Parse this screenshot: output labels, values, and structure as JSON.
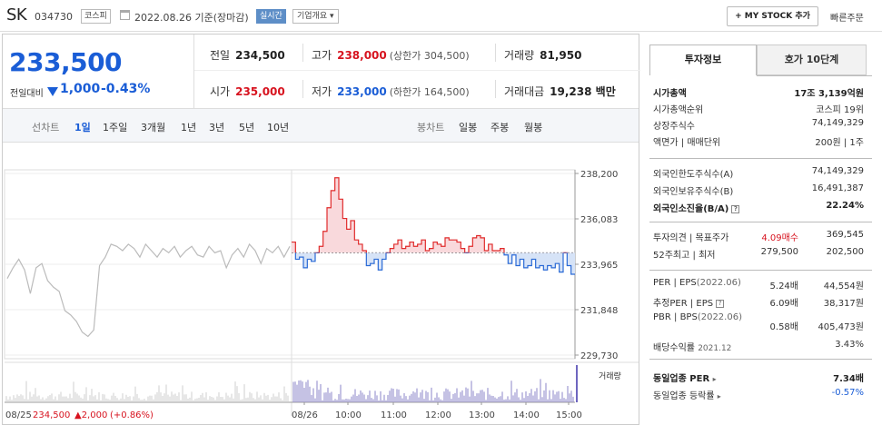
{
  "header": {
    "name": "SK",
    "code": "034730",
    "market": "코스피",
    "date_info": "2022.08.26 기준(장마감)",
    "realtime": "실시간",
    "overview": "기업개요 ▾",
    "my_stock": "+ MY STOCK 추가",
    "quick_order": "빠른주문"
  },
  "price": {
    "current": "233,500",
    "change_label": "전일대비",
    "change": "1,000",
    "change_pct": "-0.43%"
  },
  "summary": {
    "prev_label": "전일",
    "prev": "234,500",
    "high_label": "고가",
    "high": "238,000",
    "upper_limit": "(상한가 304,500)",
    "volume_label": "거래량",
    "volume": "81,950",
    "open_label": "시가",
    "open": "235,000",
    "low_label": "저가",
    "low": "233,000",
    "lower_limit": "(하한가 164,500)",
    "amount_label": "거래대금",
    "amount": "19,238 백만"
  },
  "periods": {
    "line_label": "선차트",
    "line": [
      "1일",
      "1주일",
      "3개월",
      "1년",
      "3년",
      "5년",
      "10년"
    ],
    "candle_label": "봉차트",
    "candle": [
      "일봉",
      "주봉",
      "월봉"
    ]
  },
  "chart_data": {
    "type": "line",
    "title": "",
    "xlabel": "",
    "ylabel": "",
    "ylim": [
      229730,
      238200
    ],
    "y_ticks": [
      "238,200",
      "236,083",
      "233,965",
      "231,848",
      "229,730"
    ],
    "x_ticks": [
      "08/26",
      "10:00",
      "11:00",
      "12:00",
      "13:00",
      "14:00",
      "15:00"
    ],
    "baseline": 234500,
    "prev_day": {
      "date": "08/25",
      "close": "234,500",
      "change": "▲2,000",
      "change_pct": "(+0.86%)"
    },
    "series": [
      {
        "name": "08/25",
        "values": [
          233300,
          233800,
          234200,
          233700,
          232600,
          233800,
          234000,
          233200,
          232900,
          232700,
          231800,
          231600,
          231300,
          230800,
          230600,
          230900,
          233900,
          234300,
          234900,
          234800,
          234600,
          234900,
          234700,
          234300,
          234900,
          234600,
          234300,
          234700,
          234500,
          234800,
          234300,
          234600,
          234800,
          234400,
          234300,
          234800,
          234500,
          234600,
          233800,
          234400,
          234700,
          234300,
          234900,
          234600,
          234000,
          234700,
          234500,
          234800,
          234300,
          234800
        ]
      },
      {
        "name": "08/26",
        "values": [
          235000,
          234200,
          234300,
          233800,
          234200,
          234100,
          234500,
          234800,
          235500,
          236600,
          237400,
          238000,
          237000,
          236100,
          235600,
          236000,
          235100,
          234900,
          234600,
          233900,
          234000,
          234200,
          233700,
          234200,
          234500,
          234700,
          234900,
          235100,
          234700,
          234800,
          235000,
          234800,
          234900,
          235100,
          234600,
          234700,
          235000,
          234900,
          234800,
          235200,
          235100,
          235100,
          235000,
          234700,
          234500,
          234800,
          235200,
          235300,
          235200,
          234600,
          234900,
          234600,
          234600,
          234700,
          234400,
          234000,
          234400,
          233900,
          234200,
          233800,
          233900,
          234200,
          233800,
          233900,
          233700,
          233900,
          233800,
          234000,
          233600,
          234500,
          233900,
          233500,
          233500
        ]
      }
    ],
    "volume_label": "거래량"
  },
  "invest": {
    "tab_active": "투자정보",
    "tab_other": "호가 10단계",
    "market_cap_label": "시가총액",
    "market_cap": "17조 3,139억원",
    "cap_rank_label": "시가총액순위",
    "cap_rank": "코스피 19위",
    "shares_label": "상장주식수",
    "shares": "74,149,329",
    "par_label": "액면가 | 매매단위",
    "par": "200원 | 1주",
    "foreign_limit_label": "외국인한도주식수(A)",
    "foreign_limit": "74,149,329",
    "foreign_hold_label": "외국인보유주식수(B)",
    "foreign_hold": "16,491,387",
    "foreign_ratio_label": "외국인소진율(B/A)",
    "foreign_ratio": "22.24%",
    "opinion_label": "투자의견 | 목표주가",
    "opinion": "4.09매수",
    "target": "369,545",
    "w52_label": "52주최고 | 최저",
    "w52_high": "279,500",
    "w52_low": "202,500",
    "per_label": "PER | EPS",
    "per_period": "(2022.06)",
    "per": "5.24배",
    "eps": "44,554원",
    "est_per_label": "추정PER | EPS",
    "est_per": "6.09배",
    "est_eps": "38,317원",
    "pbr_label": "PBR | BPS",
    "pbr_period": "(2022.06)",
    "pbr": "0.58배",
    "bps": "405,473원",
    "div_label": "배당수익률",
    "div_period": "2021.12",
    "div": "3.43%",
    "peer_per_label": "동일업종 PER",
    "peer_per": "7.34배",
    "peer_chg_label": "동일업종 등락률",
    "peer_chg": "-0.57%"
  }
}
